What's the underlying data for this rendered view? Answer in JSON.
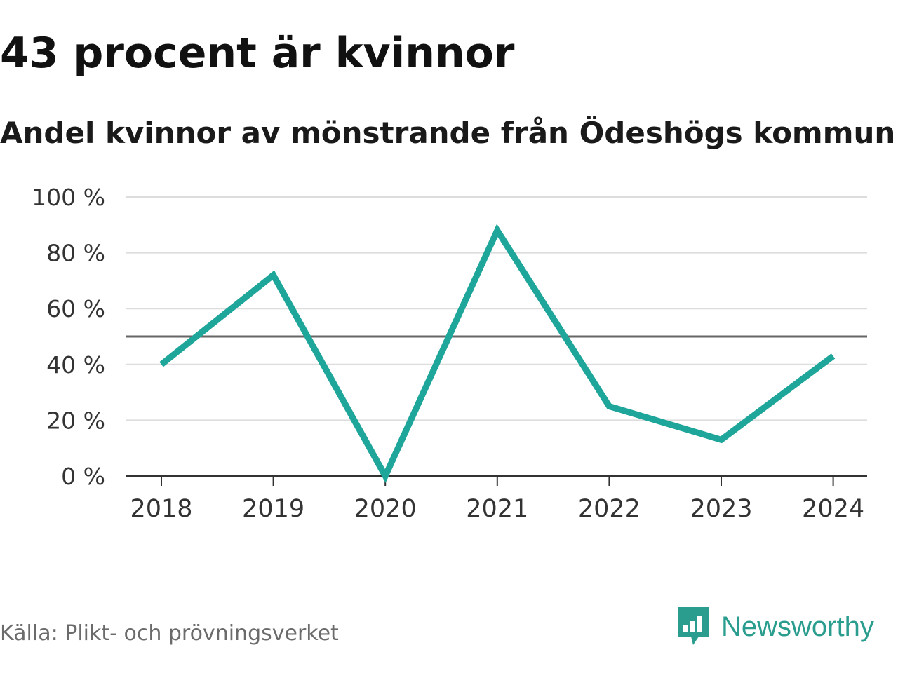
{
  "chart_data": {
    "type": "line",
    "title": "43 procent är kvinnor",
    "subtitle": "Andel kvinnor av mönstrande från Ödeshögs kommun",
    "categories": [
      "2018",
      "2019",
      "2020",
      "2021",
      "2022",
      "2023",
      "2024"
    ],
    "series": [
      {
        "name": "Andel kvinnor",
        "values": [
          40,
          72,
          0,
          88,
          25,
          13,
          43
        ]
      }
    ],
    "xlabel": "",
    "ylabel": "",
    "ylim": [
      0,
      100
    ],
    "y_ticks": [
      0,
      20,
      40,
      60,
      80,
      100
    ],
    "y_tick_labels": [
      "0 %",
      "20 %",
      "40 %",
      "60 %",
      "80 %",
      "100 %"
    ],
    "reference_line": 50,
    "grid": true,
    "line_color": "#1fa69a",
    "reference_color": "#666666"
  },
  "footer": {
    "source": "Källa: Plikt- och prövningsverket",
    "brand": "Newsworthy",
    "brand_icon": "newsworthy-logo-icon",
    "brand_color": "#2a9d8f"
  }
}
